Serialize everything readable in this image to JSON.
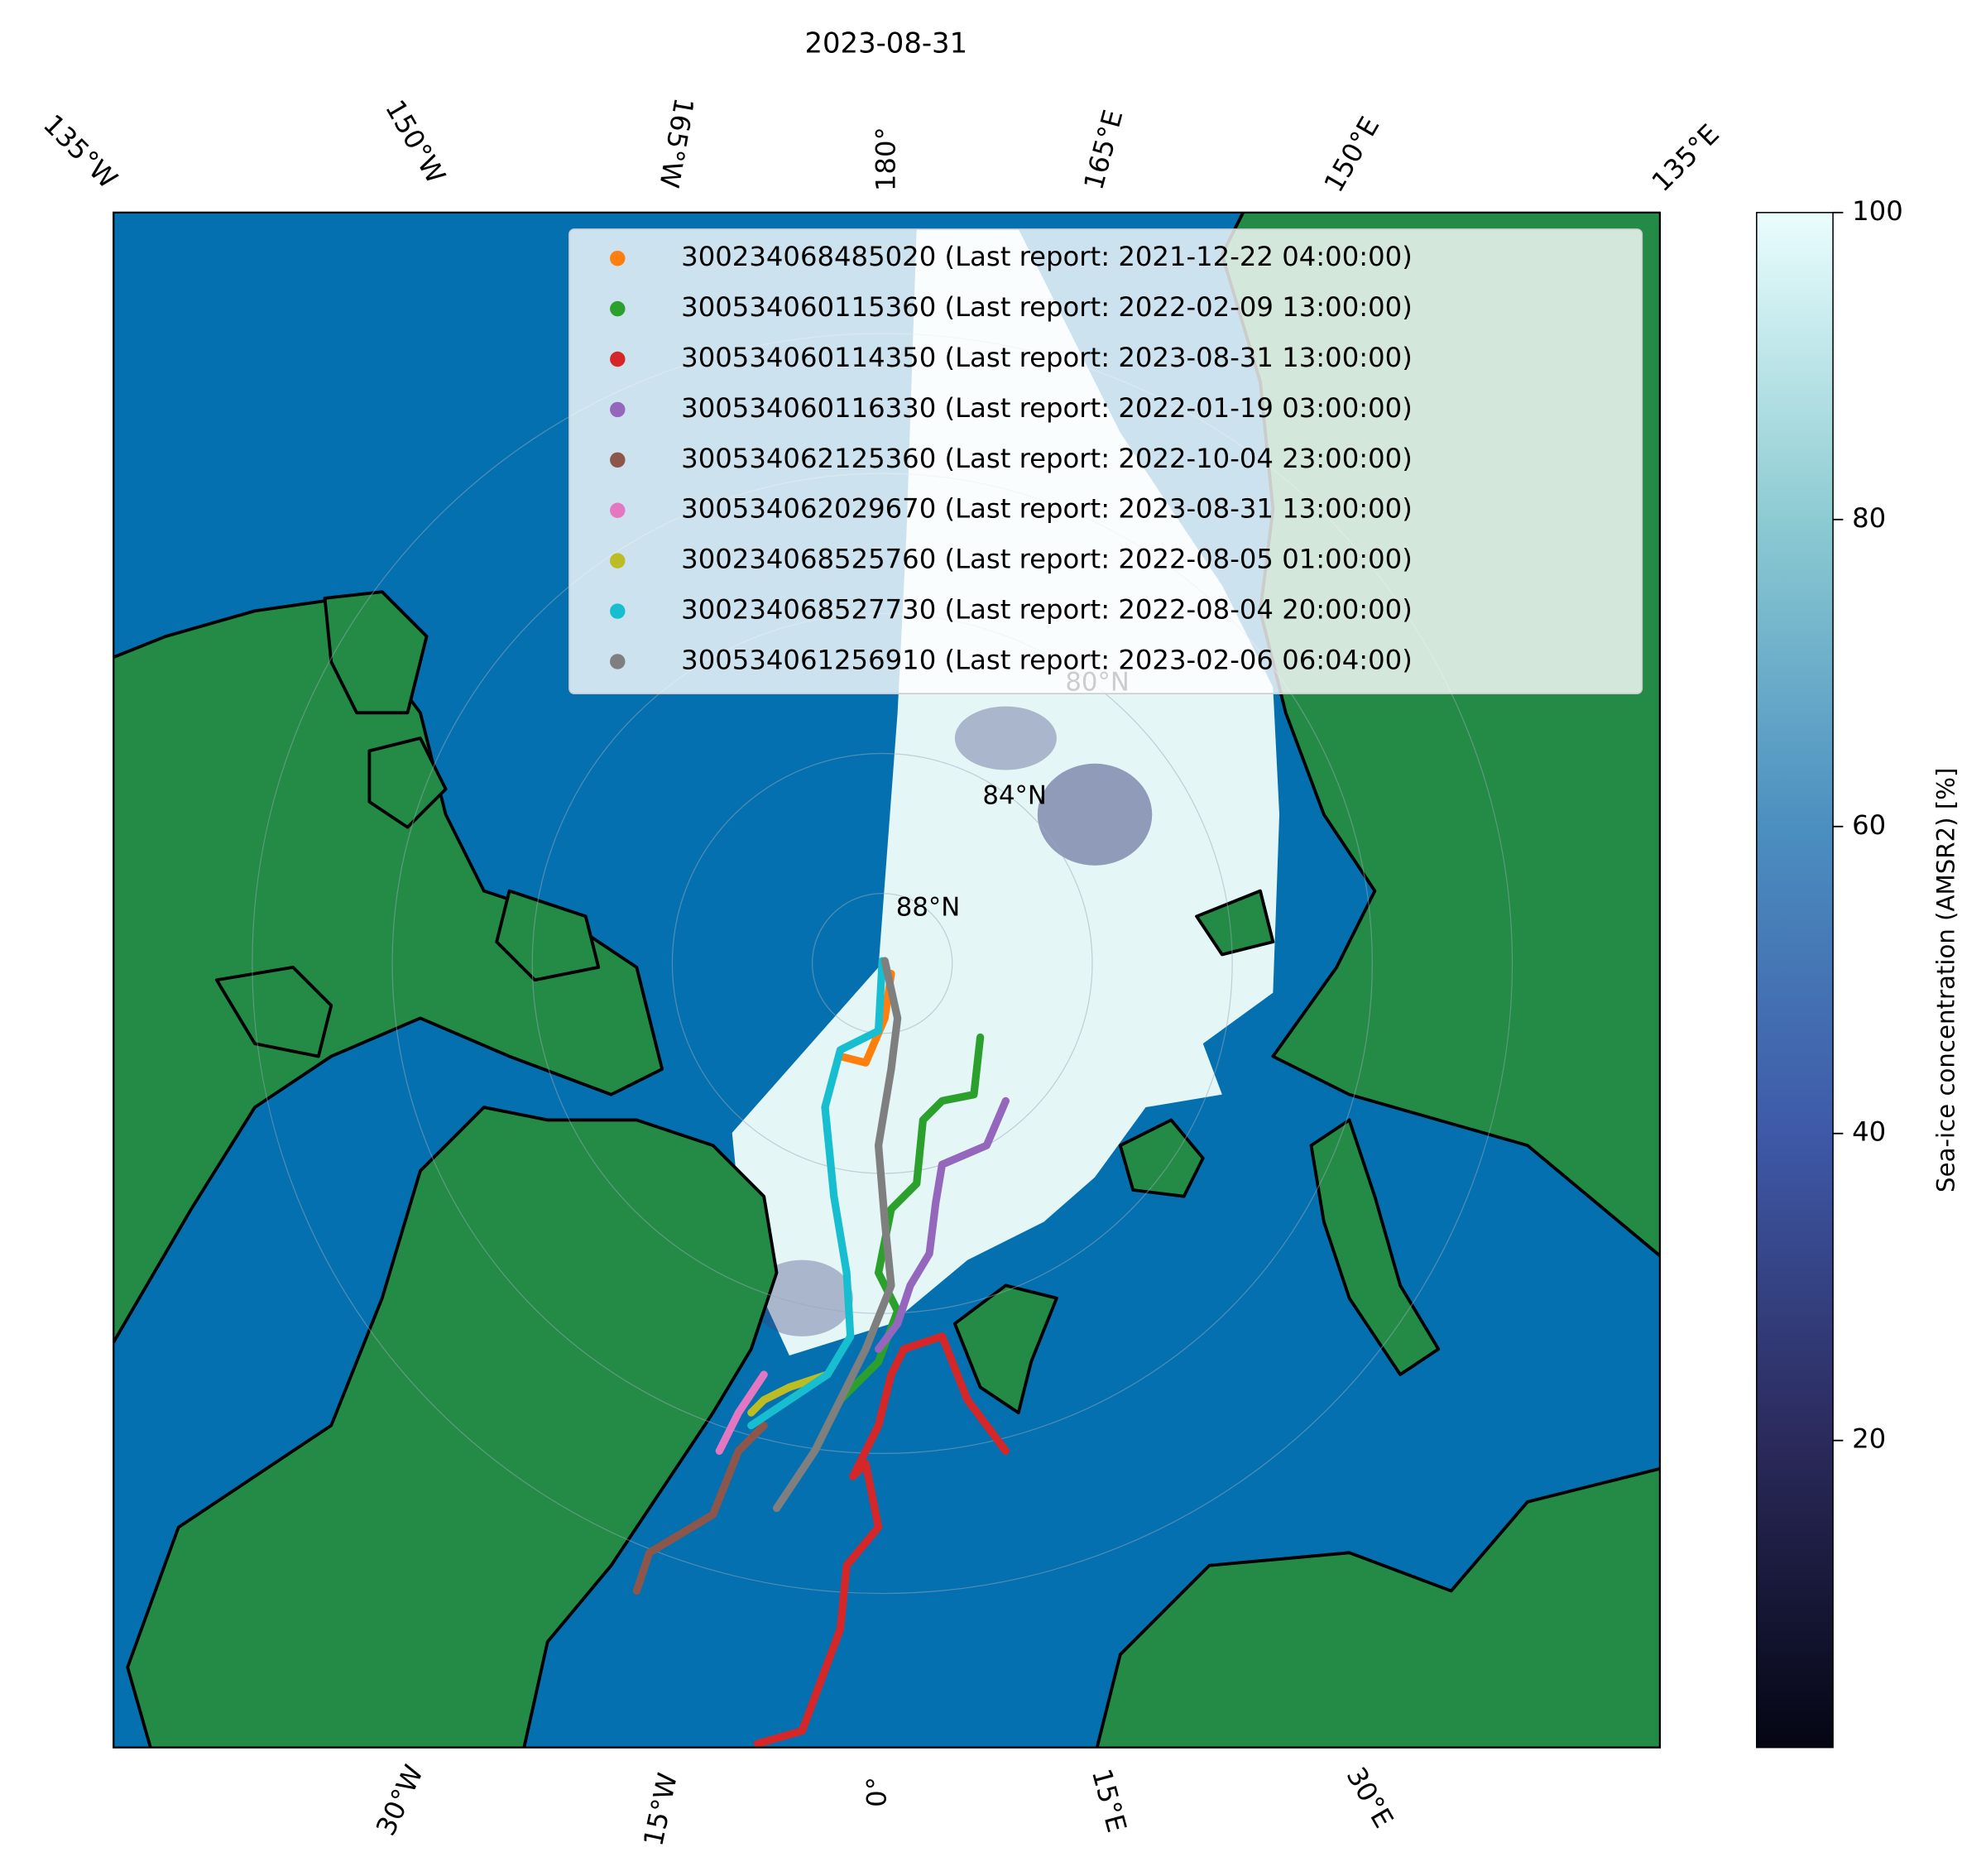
{
  "title": "2023-08-31",
  "map": {
    "longitude_labels_top": [
      "135°W",
      "150°W",
      "165°W",
      "180°",
      "165°E",
      "150°E",
      "135°E"
    ],
    "longitude_labels_bottom": [
      "30°W",
      "15°W",
      "0°",
      "15°E",
      "30°E"
    ],
    "latitude_labels": [
      "80°N",
      "84°N",
      "88°N"
    ]
  },
  "legend": {
    "series": [
      {
        "name": "300234068485020 (Last report: 2021-12-22 04:00:00)",
        "color": "#ff7f0e"
      },
      {
        "name": "300534060115360 (Last report: 2022-02-09 13:00:00)",
        "color": "#2ca02c"
      },
      {
        "name": "300534060114350 (Last report: 2023-08-31 13:00:00)",
        "color": "#d62728"
      },
      {
        "name": "300534060116330 (Last report: 2022-01-19 03:00:00)",
        "color": "#9467bd"
      },
      {
        "name": "300534062125360 (Last report: 2022-10-04 23:00:00)",
        "color": "#8c564b"
      },
      {
        "name": "300534062029670 (Last report: 2023-08-31 13:00:00)",
        "color": "#e377c2"
      },
      {
        "name": "300234068525760 (Last report: 2022-08-05 01:00:00)",
        "color": "#bcbd22"
      },
      {
        "name": "300234068527730 (Last report: 2022-08-04 20:00:00)",
        "color": "#17becf"
      },
      {
        "name": "300534061256910 (Last report: 2023-02-06 06:04:00)",
        "color": "#7f7f7f"
      }
    ]
  },
  "colorbar": {
    "label": "Sea-ice concentration (AMSR2) [%]",
    "ylim": [
      0,
      100
    ],
    "yticks": [
      20,
      40,
      60,
      80,
      100
    ]
  }
}
